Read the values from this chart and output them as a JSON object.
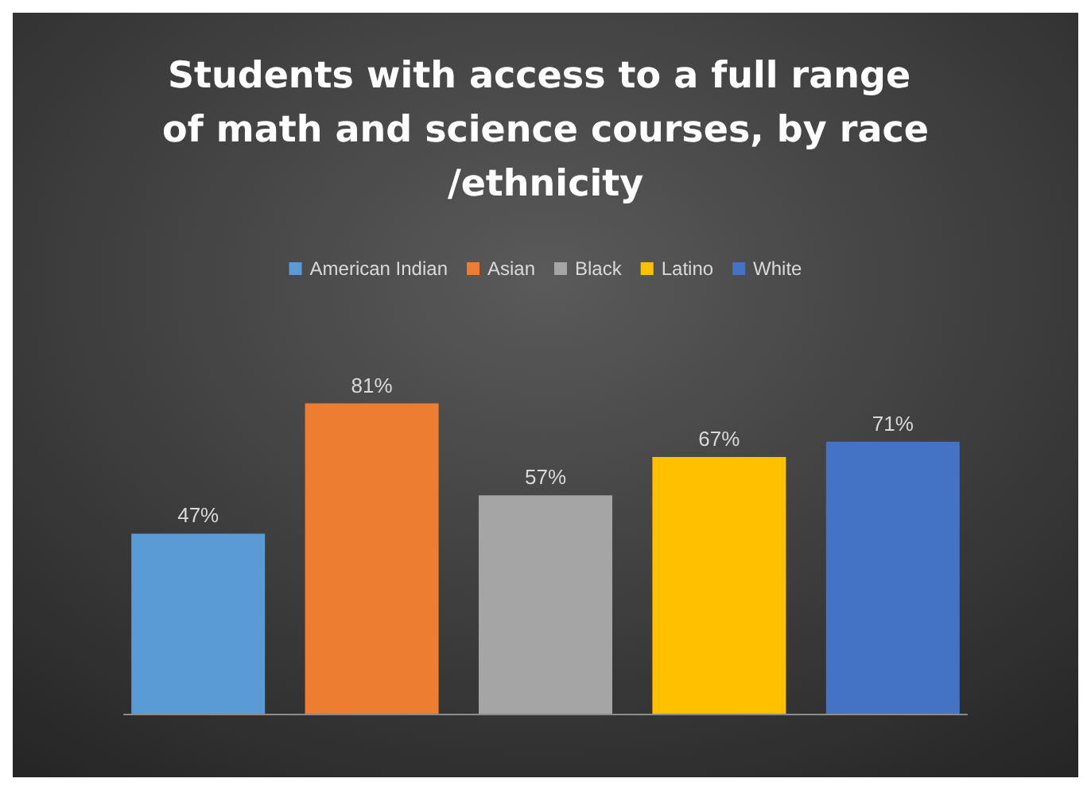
{
  "chart_data": {
    "type": "bar",
    "title": "Students with access to a full range of math and science courses, by race/ethnicity",
    "categories": [
      null
    ],
    "series": [
      {
        "name": "American Indian",
        "color": "#5b9bd5",
        "values": [
          47
        ],
        "value_labels": [
          "47%"
        ]
      },
      {
        "name": "Asian",
        "color": "#ed7d31",
        "values": [
          81
        ],
        "value_labels": [
          "81%"
        ]
      },
      {
        "name": "Black",
        "color": "#a5a5a5",
        "values": [
          57
        ],
        "value_labels": [
          "57%"
        ]
      },
      {
        "name": "Latino",
        "color": "#ffc000",
        "values": [
          67
        ],
        "value_labels": [
          "67%"
        ]
      },
      {
        "name": "White",
        "color": "#4472c4",
        "values": [
          71
        ],
        "value_labels": [
          "71%"
        ]
      }
    ],
    "legend": "top"
  }
}
